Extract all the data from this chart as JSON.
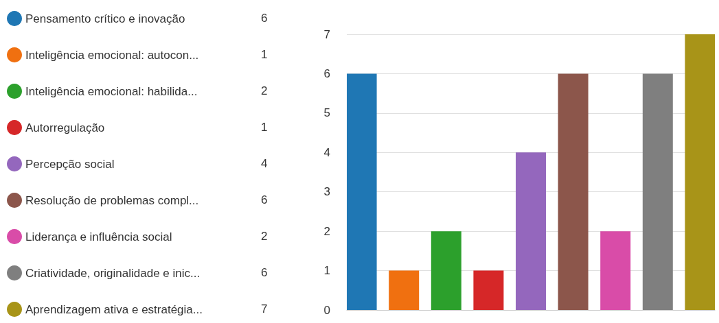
{
  "chart_data": {
    "type": "bar",
    "categories": [
      null
    ],
    "series": [
      {
        "name": "Pensamento crítico e inovação",
        "color": "#1f77b4",
        "values": [
          6
        ]
      },
      {
        "name": "Inteligência emocional: autocon...",
        "color": "#f07010",
        "values": [
          1
        ]
      },
      {
        "name": "Inteligência emocional: habilida...",
        "color": "#2ca02c",
        "values": [
          2
        ]
      },
      {
        "name": "Autorregulação",
        "color": "#d62728",
        "values": [
          1
        ]
      },
      {
        "name": "Percepção social",
        "color": "#9467bd",
        "values": [
          4
        ]
      },
      {
        "name": "Resolução de problemas compl...",
        "color": "#8c564b",
        "values": [
          6
        ]
      },
      {
        "name": "Liderança e influência social",
        "color": "#d94ca8",
        "values": [
          2
        ]
      },
      {
        "name": "Criatividade, originalidade e inic...",
        "color": "#7f7f7f",
        "values": [
          6
        ]
      },
      {
        "name": "Aprendizagem ativa e estratégia...",
        "color": "#a89418",
        "values": [
          7
        ]
      }
    ],
    "annotations": [
      "6",
      "1",
      "2",
      "1",
      "4",
      "6",
      "2",
      "6",
      "7"
    ],
    "ylim": [
      0,
      7
    ],
    "yticks": [
      0,
      1,
      2,
      3,
      4,
      5,
      6,
      7
    ],
    "grid": "y",
    "legend": "left"
  }
}
